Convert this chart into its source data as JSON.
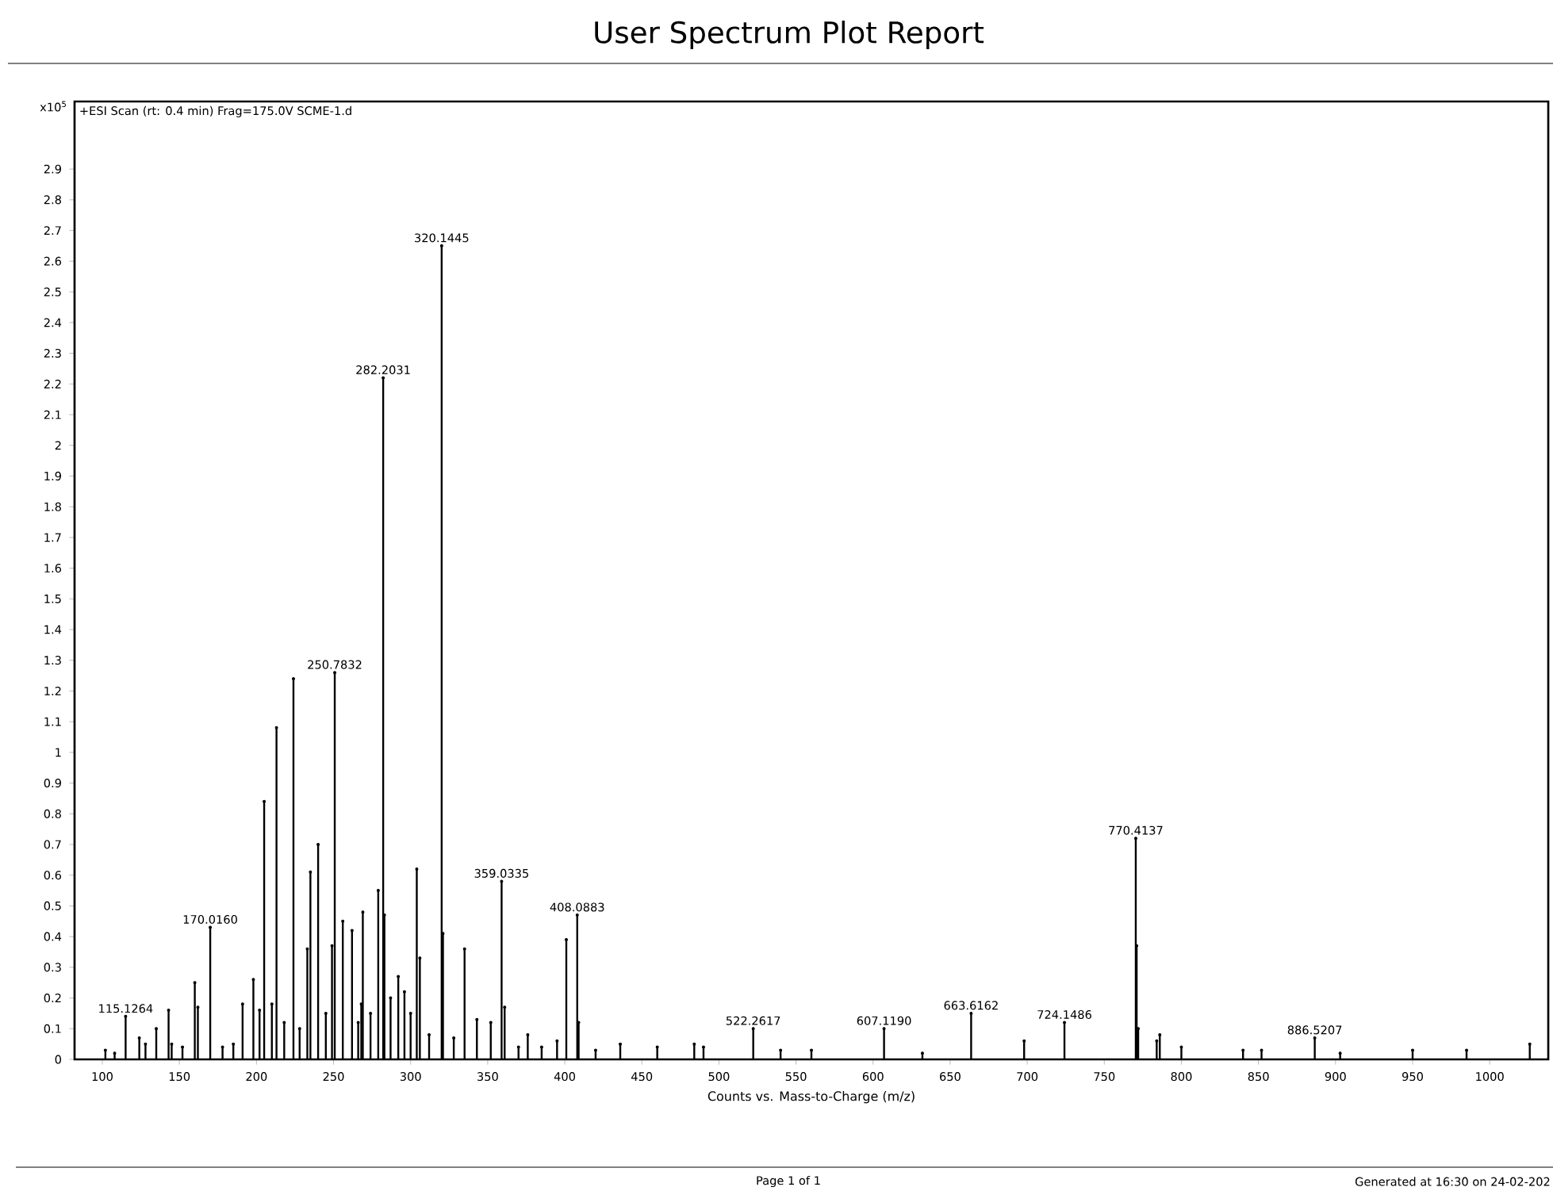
{
  "chart_data": {
    "type": "lollipop",
    "title": "User Spectrum Plot Report",
    "subtitle": "+ESI Scan (rt: 0.4 min) Frag=175.0V SCME-1.d",
    "ylabel": "x10$^{5}$",
    "xlabel": "Counts vs. Mass-to-Charge (m/z)",
    "color": "#000000",
    "marker": "circle",
    "x": [
      102,
      108,
      115.1264,
      124,
      128,
      135,
      143,
      145,
      152,
      160,
      162,
      170.016,
      178,
      185,
      191,
      198,
      202,
      205,
      210,
      213,
      218,
      224,
      228,
      233,
      235,
      240,
      245,
      249,
      250.7832,
      256,
      262,
      266,
      268,
      269,
      274,
      279,
      282.2031,
      283,
      287,
      292,
      296,
      300,
      304,
      306,
      312,
      320.1445,
      321,
      328,
      335,
      343,
      352,
      359.0335,
      361,
      370,
      376,
      385,
      395,
      401,
      408.0883,
      409,
      420,
      436,
      460,
      484,
      490,
      522.2617,
      540,
      560,
      607.119,
      632,
      663.6162,
      698,
      724.1486,
      770.4137,
      771,
      772,
      784,
      786,
      800,
      840,
      852,
      886.5207,
      903,
      950,
      985,
      1026
    ],
    "values": [
      0.03,
      0.02,
      0.14,
      0.07,
      0.05,
      0.1,
      0.16,
      0.05,
      0.04,
      0.25,
      0.17,
      0.43,
      0.04,
      0.05,
      0.18,
      0.26,
      0.16,
      0.84,
      0.18,
      1.08,
      0.12,
      1.24,
      0.1,
      0.36,
      0.61,
      0.7,
      0.15,
      0.37,
      1.26,
      0.45,
      0.42,
      0.12,
      0.18,
      0.48,
      0.15,
      0.55,
      2.22,
      0.47,
      0.2,
      0.27,
      0.22,
      0.15,
      0.62,
      0.33,
      0.08,
      2.65,
      0.41,
      0.07,
      0.36,
      0.13,
      0.12,
      0.58,
      0.17,
      0.04,
      0.08,
      0.04,
      0.06,
      0.39,
      0.47,
      0.12,
      0.03,
      0.05,
      0.04,
      0.05,
      0.04,
      0.1,
      0.03,
      0.03,
      0.1,
      0.02,
      0.15,
      0.06,
      0.12,
      0.72,
      0.37,
      0.1,
      0.06,
      0.08,
      0.04,
      0.03,
      0.03,
      0.07,
      0.02,
      0.03,
      0.03,
      0.05
    ],
    "xlim": [
      82,
      1038
    ],
    "ylim": [
      0,
      3.12
    ],
    "xticks": [
      100,
      150,
      200,
      250,
      300,
      350,
      400,
      450,
      500,
      550,
      600,
      650,
      700,
      750,
      800,
      850,
      900,
      950,
      1000
    ],
    "yticks": [
      0,
      0.1,
      0.2,
      0.3,
      0.4,
      0.5,
      0.6,
      0.7,
      0.8,
      0.9,
      1,
      1.1,
      1.2,
      1.3,
      1.4,
      1.5,
      1.6,
      1.7,
      1.8,
      1.9,
      2,
      2.1,
      2.2,
      2.3,
      2.4,
      2.5,
      2.6,
      2.7,
      2.8,
      2.9
    ],
    "annotations": [
      {
        "text": "115.1264",
        "x": 115.1264,
        "y": 0.14
      },
      {
        "text": "170.0160",
        "x": 170.016,
        "y": 0.43
      },
      {
        "text": "250.7832",
        "x": 250.7832,
        "y": 1.26
      },
      {
        "text": "282.2031",
        "x": 282.2031,
        "y": 2.22
      },
      {
        "text": "320.1445",
        "x": 320.1445,
        "y": 2.65
      },
      {
        "text": "359.0335",
        "x": 359.0335,
        "y": 0.58
      },
      {
        "text": "408.0883",
        "x": 408.0883,
        "y": 0.47
      },
      {
        "text": "522.2617",
        "x": 522.2617,
        "y": 0.1
      },
      {
        "text": "607.1190",
        "x": 607.119,
        "y": 0.1
      },
      {
        "text": "663.6162",
        "x": 663.6162,
        "y": 0.15
      },
      {
        "text": "724.1486",
        "x": 724.1486,
        "y": 0.12
      },
      {
        "text": "770.4137",
        "x": 770.4137,
        "y": 0.72
      },
      {
        "text": "886.5207",
        "x": 886.5207,
        "y": 0.07
      },
      "Page 1 of 1",
      "Generated at 16:30 on 24-02-202"
    ]
  }
}
